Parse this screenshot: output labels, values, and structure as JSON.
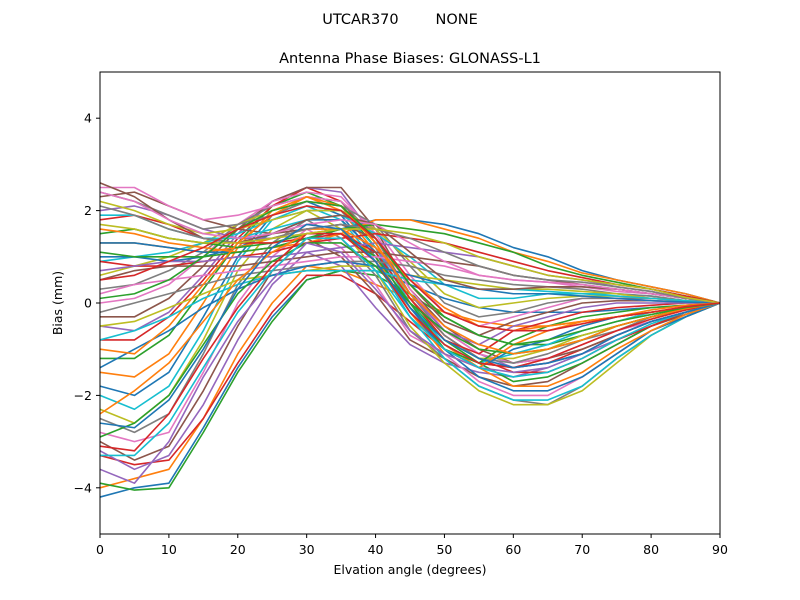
{
  "figure": {
    "suptitle": "UTCAR370        NONE"
  },
  "chart_data": {
    "type": "line",
    "title": "Antenna Phase Biases: GLONASS-L1",
    "xlabel": "Elvation angle (degrees)",
    "ylabel": "Bias (mm)",
    "xlim": [
      0,
      90
    ],
    "ylim": [
      -5,
      5
    ],
    "xticks": [
      0,
      10,
      20,
      30,
      40,
      50,
      60,
      70,
      80,
      90
    ],
    "yticks": [
      -4,
      -2,
      0,
      2,
      4
    ],
    "grid": false,
    "legend": "none",
    "palette": [
      "#1f77b4",
      "#ff7f0e",
      "#2ca02c",
      "#d62728",
      "#9467bd",
      "#8c564b",
      "#e377c2",
      "#7f7f7f",
      "#bcbd22",
      "#17becf"
    ],
    "x": [
      0,
      5,
      10,
      15,
      20,
      25,
      30,
      35,
      40,
      45,
      50,
      55,
      60,
      65,
      70,
      75,
      80,
      85,
      90
    ],
    "series": [
      {
        "values": [
          -4.2,
          -4.0,
          -3.9,
          -2.7,
          -1.4,
          -0.3,
          0.5,
          0.7,
          0.7,
          0.4,
          0.1,
          -0.1,
          -0.2,
          -0.2,
          -0.2,
          -0.15,
          -0.1,
          -0.05,
          0
        ]
      },
      {
        "values": [
          -4.0,
          -3.8,
          -3.6,
          -2.5,
          -1.1,
          0.0,
          0.8,
          0.7,
          0.4,
          0.1,
          -0.2,
          -0.4,
          -0.5,
          -0.5,
          -0.4,
          -0.3,
          -0.2,
          -0.1,
          0
        ]
      },
      {
        "values": [
          -3.9,
          -4.05,
          -4.0,
          -2.8,
          -1.5,
          -0.4,
          0.5,
          0.7,
          0.6,
          0.2,
          -0.3,
          -0.7,
          -0.9,
          -0.9,
          -0.7,
          -0.5,
          -0.3,
          -0.15,
          0
        ]
      },
      {
        "values": [
          -3.3,
          -3.5,
          -3.4,
          -2.5,
          -1.3,
          -0.2,
          0.6,
          0.6,
          0.2,
          -0.4,
          -1.0,
          -1.3,
          -1.4,
          -1.3,
          -1.0,
          -0.7,
          -0.4,
          -0.2,
          0
        ]
      },
      {
        "values": [
          -3.2,
          -3.6,
          -3.3,
          -2.2,
          -0.8,
          0.4,
          1.1,
          0.8,
          -0.1,
          -0.9,
          -1.3,
          -1.5,
          -1.6,
          -1.4,
          -1.1,
          -0.8,
          -0.5,
          -0.25,
          0
        ]
      },
      {
        "values": [
          -3.0,
          -3.4,
          -3.1,
          -1.9,
          -0.5,
          0.7,
          1.4,
          1.0,
          0.2,
          -0.8,
          -1.2,
          -1.6,
          -1.8,
          -1.7,
          -1.3,
          -0.9,
          -0.5,
          -0.25,
          0
        ]
      },
      {
        "values": [
          -2.8,
          -3.0,
          -2.8,
          -1.5,
          0.0,
          1.0,
          1.6,
          1.2,
          0.4,
          -0.7,
          -1.1,
          -1.7,
          -2.0,
          -2.0,
          -1.6,
          -1.1,
          -0.6,
          -0.3,
          0
        ]
      },
      {
        "values": [
          -2.5,
          -2.8,
          -2.4,
          -1.1,
          0.4,
          1.3,
          1.8,
          1.4,
          0.6,
          -0.6,
          -1.2,
          -1.8,
          -2.1,
          -2.2,
          -1.8,
          -1.2,
          -0.7,
          -0.3,
          0
        ]
      },
      {
        "values": [
          -2.3,
          -2.6,
          -2.0,
          -0.8,
          0.7,
          1.6,
          2.0,
          1.6,
          0.7,
          -0.5,
          -1.3,
          -1.9,
          -2.2,
          -2.2,
          -1.9,
          -1.3,
          -0.7,
          -0.3,
          0
        ]
      },
      {
        "values": [
          -2.0,
          -2.3,
          -1.8,
          -0.6,
          0.9,
          1.8,
          2.1,
          1.8,
          0.9,
          -0.3,
          -1.2,
          -1.8,
          -2.1,
          -2.1,
          -1.8,
          -1.2,
          -0.7,
          -0.3,
          0
        ]
      },
      {
        "values": [
          -1.8,
          -2.0,
          -1.5,
          -0.3,
          1.0,
          1.9,
          2.2,
          1.9,
          1.0,
          -0.2,
          -1.0,
          -1.6,
          -1.9,
          -1.9,
          -1.6,
          -1.1,
          -0.6,
          -0.3,
          0
        ]
      },
      {
        "values": [
          -1.5,
          -1.6,
          -1.1,
          0.0,
          1.2,
          2.0,
          2.3,
          2.0,
          1.1,
          -0.1,
          -0.9,
          -1.4,
          -1.8,
          -1.8,
          -1.5,
          -1.0,
          -0.6,
          -0.25,
          0
        ]
      },
      {
        "values": [
          -1.2,
          -1.2,
          -0.7,
          0.3,
          1.3,
          2.1,
          2.4,
          2.1,
          1.2,
          0.0,
          -0.8,
          -1.3,
          -1.7,
          -1.6,
          -1.3,
          -0.9,
          -0.5,
          -0.2,
          0
        ]
      },
      {
        "values": [
          -0.8,
          -0.8,
          -0.3,
          0.5,
          1.4,
          2.1,
          2.5,
          2.2,
          1.3,
          0.1,
          -0.7,
          -1.2,
          -1.5,
          -1.5,
          -1.2,
          -0.8,
          -0.5,
          -0.2,
          0
        ]
      },
      {
        "values": [
          -0.5,
          -0.6,
          -0.2,
          0.6,
          1.5,
          2.2,
          2.5,
          2.4,
          1.4,
          0.2,
          -0.6,
          -1.1,
          -1.4,
          -1.3,
          -1.1,
          -0.7,
          -0.4,
          -0.2,
          0
        ]
      },
      {
        "values": [
          -0.3,
          -0.3,
          0.1,
          0.8,
          1.6,
          2.2,
          2.5,
          2.5,
          1.6,
          0.3,
          -0.5,
          -1.0,
          -1.3,
          -1.2,
          -1.0,
          -0.7,
          -0.4,
          -0.2,
          0
        ]
      },
      {
        "values": [
          0.0,
          0.1,
          0.4,
          1.0,
          1.7,
          2.2,
          2.4,
          2.3,
          1.5,
          0.3,
          -0.6,
          -1.1,
          -1.3,
          -1.2,
          -0.9,
          -0.6,
          -0.4,
          -0.2,
          0
        ]
      },
      {
        "values": [
          0.3,
          0.4,
          0.7,
          1.1,
          1.7,
          2.1,
          2.3,
          2.2,
          1.4,
          0.2,
          -0.7,
          -1.2,
          -1.3,
          -1.1,
          -0.8,
          -0.6,
          -0.3,
          -0.15,
          0
        ]
      },
      {
        "values": [
          0.6,
          0.8,
          1.0,
          1.3,
          1.7,
          2.0,
          2.2,
          2.1,
          1.3,
          0.1,
          -0.8,
          -1.2,
          -1.2,
          -1.0,
          -0.7,
          -0.5,
          -0.3,
          -0.15,
          0
        ]
      },
      {
        "values": [
          0.9,
          1.0,
          1.1,
          1.3,
          1.5,
          1.8,
          2.0,
          2.0,
          1.2,
          0.0,
          -0.9,
          -1.3,
          -1.1,
          -0.9,
          -0.6,
          -0.4,
          -0.2,
          -0.1,
          0
        ]
      },
      {
        "values": [
          1.0,
          1.0,
          0.9,
          1.0,
          1.2,
          1.5,
          1.8,
          1.8,
          1.1,
          -0.1,
          -1.0,
          -1.4,
          -1.0,
          -0.8,
          -0.5,
          -0.3,
          -0.2,
          -0.1,
          0
        ]
      },
      {
        "values": [
          1.3,
          1.3,
          1.2,
          1.1,
          1.2,
          1.4,
          1.6,
          1.6,
          1.0,
          -0.2,
          -1.1,
          -1.4,
          -0.9,
          -0.6,
          -0.4,
          -0.3,
          -0.2,
          -0.1,
          0
        ]
      },
      {
        "values": [
          1.5,
          1.6,
          1.4,
          1.3,
          1.2,
          1.3,
          1.5,
          1.5,
          1.0,
          0.0,
          -1.0,
          -1.3,
          -0.8,
          -0.5,
          -0.3,
          -0.2,
          -0.1,
          -0.05,
          0
        ]
      },
      {
        "values": [
          1.8,
          1.9,
          1.7,
          1.4,
          1.3,
          1.3,
          1.4,
          1.5,
          1.1,
          0.1,
          -0.8,
          -1.1,
          -0.6,
          -0.4,
          -0.2,
          -0.1,
          -0.05,
          0,
          0
        ]
      },
      {
        "values": [
          2.0,
          2.1,
          1.9,
          1.6,
          1.4,
          1.4,
          1.5,
          1.6,
          1.2,
          0.2,
          -0.6,
          -0.9,
          -0.5,
          -0.3,
          -0.1,
          0.0,
          0.0,
          0.0,
          0
        ]
      },
      {
        "values": [
          2.3,
          2.4,
          2.1,
          1.8,
          1.6,
          1.5,
          1.6,
          1.7,
          1.4,
          0.4,
          -0.4,
          -0.7,
          -0.4,
          -0.2,
          0.0,
          0.05,
          0.05,
          0.02,
          0
        ]
      },
      {
        "values": [
          2.5,
          2.5,
          2.1,
          1.8,
          1.9,
          2.1,
          2.3,
          2.2,
          1.6,
          0.6,
          -0.2,
          -0.5,
          -0.3,
          -0.1,
          0.1,
          0.1,
          0.05,
          0.02,
          0
        ]
      },
      {
        "values": [
          2.4,
          2.2,
          1.9,
          1.6,
          1.7,
          1.9,
          2.2,
          2.1,
          1.7,
          0.8,
          0.0,
          -0.3,
          -0.2,
          0.0,
          0.1,
          0.1,
          0.1,
          0.05,
          0
        ]
      },
      {
        "values": [
          2.2,
          2.0,
          1.7,
          1.5,
          1.6,
          1.8,
          2.0,
          2.0,
          1.6,
          0.9,
          0.2,
          -0.1,
          0.0,
          0.1,
          0.15,
          0.15,
          0.1,
          0.05,
          0
        ]
      },
      {
        "values": [
          1.9,
          1.9,
          1.6,
          1.4,
          1.4,
          1.6,
          1.8,
          1.9,
          1.5,
          1.0,
          0.4,
          0.1,
          0.1,
          0.2,
          0.2,
          0.2,
          0.15,
          0.05,
          0
        ]
      },
      {
        "values": [
          1.3,
          1.3,
          1.2,
          1.1,
          1.1,
          1.2,
          1.4,
          1.6,
          1.8,
          1.8,
          1.7,
          1.5,
          1.2,
          1.0,
          0.7,
          0.5,
          0.35,
          0.2,
          0
        ]
      },
      {
        "values": [
          1.6,
          1.5,
          1.3,
          1.2,
          1.1,
          1.2,
          1.3,
          1.5,
          1.8,
          1.8,
          1.6,
          1.4,
          1.1,
          0.9,
          0.65,
          0.5,
          0.35,
          0.2,
          0
        ]
      },
      {
        "values": [
          1.1,
          1.0,
          1.0,
          1.0,
          1.1,
          1.2,
          1.4,
          1.6,
          1.7,
          1.6,
          1.5,
          1.3,
          1.1,
          0.8,
          0.6,
          0.45,
          0.3,
          0.15,
          0
        ]
      },
      {
        "values": [
          0.9,
          0.8,
          0.8,
          0.9,
          1.0,
          1.1,
          1.3,
          1.4,
          1.5,
          1.4,
          1.3,
          1.1,
          0.9,
          0.7,
          0.55,
          0.4,
          0.3,
          0.15,
          0
        ]
      },
      {
        "values": [
          0.7,
          0.8,
          0.9,
          0.9,
          1.0,
          1.0,
          1.1,
          1.2,
          1.3,
          1.2,
          1.1,
          1.0,
          0.8,
          0.6,
          0.5,
          0.35,
          0.25,
          0.1,
          0
        ]
      },
      {
        "values": [
          0.5,
          0.7,
          0.8,
          0.8,
          0.8,
          0.9,
          1.0,
          1.1,
          1.1,
          1.0,
          0.9,
          0.8,
          0.6,
          0.5,
          0.4,
          0.3,
          0.2,
          0.1,
          0
        ]
      },
      {
        "values": [
          0.2,
          0.4,
          0.5,
          0.6,
          0.7,
          0.8,
          0.9,
          1.0,
          1.0,
          0.9,
          0.8,
          0.6,
          0.5,
          0.45,
          0.35,
          0.25,
          0.2,
          0.1,
          0
        ]
      },
      {
        "values": [
          -0.2,
          0.0,
          0.2,
          0.4,
          0.6,
          0.7,
          0.8,
          0.9,
          0.9,
          0.8,
          0.6,
          0.5,
          0.4,
          0.35,
          0.3,
          0.2,
          0.15,
          0.05,
          0
        ]
      },
      {
        "values": [
          -0.5,
          -0.4,
          -0.1,
          0.2,
          0.5,
          0.6,
          0.7,
          0.8,
          0.8,
          0.6,
          0.5,
          0.4,
          0.3,
          0.3,
          0.25,
          0.2,
          0.1,
          0.05,
          0
        ]
      },
      {
        "values": [
          -0.8,
          -0.6,
          -0.3,
          0.1,
          0.4,
          0.6,
          0.7,
          0.7,
          0.7,
          0.5,
          0.4,
          0.3,
          0.3,
          0.25,
          0.2,
          0.15,
          0.1,
          0.05,
          0
        ]
      },
      {
        "values": [
          -1.4,
          -1.0,
          -0.6,
          -0.1,
          0.3,
          0.6,
          0.8,
          0.9,
          0.8,
          0.6,
          0.4,
          0.3,
          0.2,
          0.2,
          0.15,
          0.1,
          0.05,
          0.02,
          0
        ]
      },
      {
        "values": [
          -2.4,
          -1.9,
          -1.3,
          -0.4,
          0.5,
          1.1,
          1.5,
          1.6,
          1.2,
          0.5,
          -0.1,
          -0.5,
          -0.6,
          -0.5,
          -0.4,
          -0.3,
          -0.15,
          -0.05,
          0
        ]
      },
      {
        "values": [
          -2.9,
          -2.6,
          -2.0,
          -0.9,
          0.2,
          0.9,
          1.3,
          1.3,
          0.8,
          0.0,
          -0.6,
          -1.0,
          -1.1,
          -1.0,
          -0.8,
          -0.5,
          -0.3,
          -0.1,
          0
        ]
      },
      {
        "values": [
          -3.1,
          -3.2,
          -2.4,
          -1.2,
          -0.1,
          0.8,
          1.5,
          1.5,
          0.9,
          -0.2,
          -0.9,
          -1.3,
          -1.4,
          -1.2,
          -0.9,
          -0.6,
          -0.35,
          -0.15,
          0
        ]
      },
      {
        "values": [
          -3.6,
          -3.9,
          -3.0,
          -1.6,
          -0.4,
          0.5,
          1.3,
          1.1,
          0.3,
          -0.6,
          -1.1,
          -1.4,
          -1.5,
          -1.4,
          -1.1,
          -0.7,
          -0.4,
          -0.2,
          0
        ]
      },
      {
        "values": [
          2.6,
          2.3,
          1.8,
          1.4,
          1.3,
          1.5,
          1.8,
          1.9,
          1.7,
          1.1,
          0.5,
          0.3,
          0.3,
          0.35,
          0.35,
          0.3,
          0.2,
          0.1,
          0
        ]
      },
      {
        "values": [
          2.4,
          2.2,
          1.8,
          1.5,
          1.4,
          1.5,
          1.7,
          1.8,
          1.7,
          1.3,
          0.9,
          0.6,
          0.5,
          0.45,
          0.4,
          0.3,
          0.2,
          0.1,
          0
        ]
      },
      {
        "values": [
          2.1,
          1.9,
          1.6,
          1.4,
          1.3,
          1.4,
          1.6,
          1.7,
          1.6,
          1.4,
          1.1,
          0.8,
          0.6,
          0.5,
          0.45,
          0.35,
          0.25,
          0.1,
          0
        ]
      },
      {
        "values": [
          1.7,
          1.6,
          1.4,
          1.3,
          1.3,
          1.4,
          1.5,
          1.6,
          1.6,
          1.5,
          1.3,
          1.0,
          0.8,
          0.6,
          0.5,
          0.4,
          0.3,
          0.12,
          0
        ]
      },
      {
        "values": [
          -3.3,
          -3.3,
          -2.6,
          -1.4,
          -0.2,
          0.7,
          1.4,
          1.4,
          0.7,
          -0.3,
          -1.0,
          -1.4,
          -1.6,
          -1.5,
          -1.2,
          -0.8,
          -0.45,
          -0.2,
          0
        ]
      },
      {
        "values": [
          -2.6,
          -2.7,
          -2.1,
          -1.0,
          0.3,
          1.2,
          1.7,
          1.6,
          0.9,
          -0.1,
          -0.8,
          -1.2,
          -1.4,
          -1.3,
          -1.1,
          -0.7,
          -0.4,
          -0.2,
          0
        ]
      },
      {
        "values": [
          -1.0,
          -1.1,
          -0.5,
          0.4,
          1.3,
          1.9,
          2.3,
          2.1,
          1.3,
          0.2,
          -0.5,
          -0.9,
          -1.1,
          -1.0,
          -0.8,
          -0.5,
          -0.3,
          -0.12,
          0
        ]
      },
      {
        "values": [
          0.1,
          0.2,
          0.5,
          1.0,
          1.6,
          2.0,
          2.2,
          2.1,
          1.4,
          0.4,
          -0.3,
          -0.7,
          -0.9,
          -0.8,
          -0.6,
          -0.4,
          -0.25,
          -0.1,
          0
        ]
      },
      {
        "values": [
          0.5,
          0.6,
          0.9,
          1.2,
          1.6,
          1.9,
          2.1,
          2.0,
          1.4,
          0.5,
          -0.2,
          -0.5,
          -0.6,
          -0.6,
          -0.45,
          -0.3,
          -0.2,
          -0.08,
          0
        ]
      }
    ]
  }
}
